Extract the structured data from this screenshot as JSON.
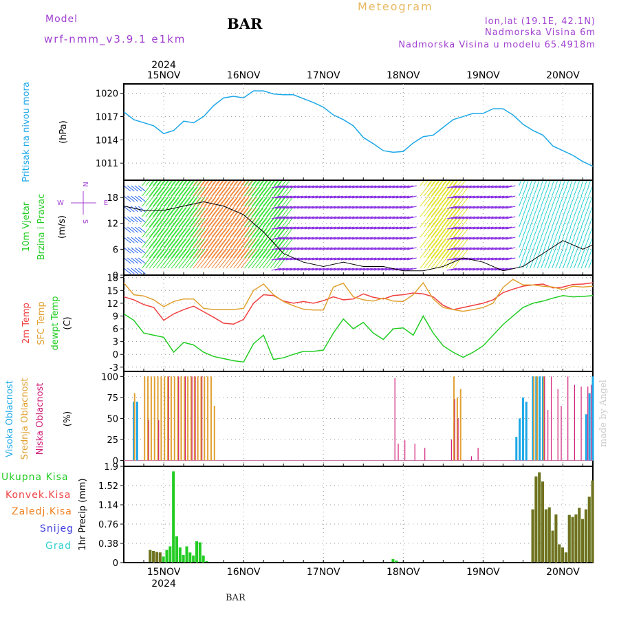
{
  "header": {
    "model_label": "Model",
    "model_run": "wrf-nmm_v3.9.1 e1km",
    "station": "BAR",
    "chart_type": "Meteogram",
    "location": "lon,lat (19.1E, 42.1N)",
    "altitude": "Nadmorska Visina 6m",
    "model_altitude": "Nadmorska Visina u modelu 65.4918m"
  },
  "footer": {
    "station": "BAR",
    "credit": "made by Angel"
  },
  "colors": {
    "pressure": "#1ca8e8",
    "t2m": "#f04040",
    "sfc": "#e0a030",
    "dewpt": "#22cc22",
    "high_cloud": "#1ca8e8",
    "mid_cloud": "#e0a030",
    "low_cloud": "#d0207a",
    "total_precip": "#22cc22",
    "conv_precip": "#f04040",
    "frozen": "#f08020",
    "snow": "#4040e0",
    "graupel": "#30d0d0",
    "wind_compass": "#a040d0"
  },
  "chart_data": [
    {
      "type": "line",
      "name": "pressure",
      "ylabel_lines": [
        "Pritisak na nivou mora",
        "(hPa)"
      ],
      "yticks": [
        "1020",
        "1017",
        "1014",
        "1011"
      ],
      "ytick_values": [
        1020,
        1017,
        1014,
        1011
      ],
      "ylim": [
        1008.8,
        1021.2
      ],
      "xlim": [
        0,
        141
      ],
      "x_top_labels": [
        "15NOV",
        "16NOV",
        "17NOV",
        "18NOV",
        "19NOV",
        "20NOV"
      ],
      "x_top_year": "2024",
      "x_day_positions": [
        12,
        36,
        60,
        84,
        108,
        132
      ],
      "grid": true,
      "x": [
        0,
        3,
        6,
        9,
        12,
        15,
        18,
        21,
        24,
        27,
        30,
        33,
        36,
        39,
        42,
        45,
        48,
        51,
        54,
        57,
        60,
        63,
        66,
        69,
        72,
        75,
        78,
        81,
        84,
        87,
        90,
        93,
        96,
        99,
        102,
        105,
        108,
        111,
        114,
        117,
        120,
        123,
        126,
        129,
        132,
        135,
        138,
        141
      ],
      "y": [
        1017.6,
        1016.6,
        1016.2,
        1015.8,
        1014.8,
        1015.2,
        1016.4,
        1016.2,
        1017.0,
        1018.4,
        1019.4,
        1019.6,
        1019.4,
        1020.3,
        1020.3,
        1019.9,
        1019.8,
        1019.8,
        1019.3,
        1018.8,
        1018.2,
        1017.2,
        1016.6,
        1015.8,
        1014.3,
        1013.5,
        1012.6,
        1012.4,
        1012.5,
        1013.6,
        1014.4,
        1014.6,
        1015.6,
        1016.6,
        1017.0,
        1017.4,
        1017.4,
        1018.0,
        1018.0,
        1017.2,
        1016.0,
        1015.2,
        1014.6,
        1013.2,
        1012.6,
        1012.0,
        1011.2,
        1010.6
      ]
    },
    {
      "type": "line",
      "name": "wind",
      "ylabel_lines": [
        "10m Vjetar",
        "Brzina i Pravac",
        "(m/s)"
      ],
      "compass": [
        "N",
        "W",
        "E",
        "S"
      ],
      "yticks": [
        "0",
        "6",
        "12",
        "18"
      ],
      "ytick_values": [
        0,
        6,
        12,
        18
      ],
      "ylim": [
        0,
        22
      ],
      "x": [
        0,
        6,
        12,
        18,
        24,
        30,
        36,
        42,
        48,
        54,
        60,
        66,
        72,
        78,
        84,
        90,
        96,
        102,
        108,
        114,
        120,
        126,
        132,
        138,
        141
      ],
      "speed": [
        16,
        15,
        15,
        16,
        17,
        16,
        14,
        10,
        5,
        3,
        2,
        3,
        2,
        2,
        1,
        1,
        2,
        4,
        3,
        1,
        2,
        5,
        8,
        6,
        7
      ],
      "barb_colors": [
        "#30e030",
        "#e0e020",
        "#f08030",
        "#f03030",
        "#e020a0",
        "#8020e0",
        "#2060f0",
        "#20d0d0",
        "#80f040"
      ],
      "band_segments": [
        {
          "x0": 0,
          "x1": 5,
          "color_index": 6
        },
        {
          "x0": 5,
          "x1": 20,
          "color_index": 0
        },
        {
          "x0": 20,
          "x1": 36,
          "color_index": 2
        },
        {
          "x0": 36,
          "x1": 47,
          "color_index": 0
        },
        {
          "x0": 47,
          "x1": 89,
          "color_index": 5
        },
        {
          "x0": 89,
          "x1": 100,
          "color_index": 1
        },
        {
          "x0": 100,
          "x1": 118,
          "color_index": 5
        },
        {
          "x0": 118,
          "x1": 141,
          "color_index": 7
        }
      ]
    },
    {
      "type": "line",
      "name": "temperature",
      "ylabel_lines": [
        "2m Temp",
        "SFC Temp",
        "dewpt Temp",
        "(C)"
      ],
      "yticks": [
        "-3",
        "0",
        "3",
        "6",
        "9",
        "12",
        "15",
        "18"
      ],
      "ytick_values": [
        -3,
        0,
        3,
        6,
        9,
        12,
        15,
        18
      ],
      "ylim": [
        -3,
        18
      ],
      "x": [
        0,
        3,
        6,
        9,
        12,
        15,
        18,
        21,
        24,
        27,
        30,
        33,
        36,
        39,
        42,
        45,
        48,
        51,
        54,
        57,
        60,
        63,
        66,
        69,
        72,
        75,
        78,
        81,
        84,
        87,
        90,
        93,
        96,
        99,
        102,
        105,
        108,
        111,
        114,
        117,
        120,
        123,
        126,
        129,
        132,
        135,
        138,
        141
      ],
      "series": [
        {
          "name": "2m Temp",
          "color": "#f04040",
          "values": [
            13.5,
            12.8,
            11.7,
            11.0,
            8.0,
            9.5,
            10.5,
            11.3,
            10.0,
            8.7,
            7.3,
            7.1,
            8.2,
            12.0,
            14.0,
            13.8,
            12.5,
            12.0,
            12.4,
            12.0,
            12.6,
            13.5,
            12.8,
            13.0,
            14.2,
            13.4,
            13.0,
            13.8,
            14.0,
            14.4,
            14.2,
            13.5,
            11.5,
            10.5,
            11.0,
            11.5,
            12.0,
            12.8,
            14.5,
            15.3,
            16.0,
            16.3,
            16.5,
            15.6,
            15.8,
            16.4,
            16.5,
            16.8
          ]
        },
        {
          "name": "SFC Temp",
          "color": "#e0a030",
          "values": [
            16.8,
            14.0,
            13.7,
            12.8,
            11.2,
            12.4,
            13.0,
            13.0,
            10.8,
            10.5,
            10.5,
            10.5,
            10.8,
            15.0,
            16.5,
            14.0,
            12.4,
            11.4,
            10.6,
            10.4,
            10.4,
            15.8,
            16.7,
            13.5,
            12.8,
            12.5,
            13.2,
            12.5,
            12.4,
            14.0,
            16.8,
            13.0,
            11.0,
            10.5,
            10.1,
            10.5,
            11.0,
            12.0,
            15.7,
            17.6,
            16.3,
            16.3,
            16.0,
            15.8,
            15.2,
            16.0,
            15.8,
            16.0
          ]
        },
        {
          "name": "dewpt Temp",
          "color": "#22cc22",
          "values": [
            9.5,
            8.0,
            5.0,
            4.5,
            4.0,
            0.5,
            2.8,
            2.2,
            0.5,
            -0.5,
            -1.0,
            -1.5,
            -1.8,
            2.5,
            4.5,
            -1.2,
            -0.8,
            0.0,
            0.7,
            0.7,
            1.0,
            5.0,
            8.3,
            6.0,
            7.5,
            5.0,
            3.5,
            6.0,
            6.2,
            4.5,
            9.0,
            5.0,
            2.0,
            0.5,
            -0.7,
            0.5,
            2.0,
            4.5,
            7.0,
            9.0,
            11.0,
            12.0,
            12.5,
            13.2,
            13.8,
            13.5,
            13.6,
            13.8
          ]
        }
      ]
    },
    {
      "type": "bar",
      "name": "clouds",
      "ylabel_lines": [
        "Visoka Oblacnost",
        "Srednja Oblacnost",
        "Niska Oblacnost",
        "(%)"
      ],
      "yticks": [
        "0",
        "25",
        "50",
        "75",
        "100"
      ],
      "ytick_values": [
        0,
        25,
        50,
        75,
        100
      ],
      "ylim": [
        0,
        100
      ],
      "series": [
        {
          "name": "Visoka Oblacnost",
          "color": "#1ca8e8",
          "x": [
            3,
            4,
            118,
            119,
            120,
            121,
            123,
            124,
            125,
            126,
            139,
            140,
            141
          ],
          "values": [
            70,
            70,
            28,
            50,
            75,
            70,
            100,
            100,
            100,
            100,
            55,
            80,
            100
          ]
        },
        {
          "name": "Srednja Oblacnost",
          "color": "#e0a030",
          "x": [
            3,
            6,
            7,
            8,
            9,
            10,
            11,
            12,
            13,
            14,
            15,
            16,
            17,
            18,
            19,
            20,
            21,
            22,
            23,
            24,
            25,
            26,
            27,
            99,
            100,
            101,
            123,
            124,
            126
          ],
          "values": [
            80,
            100,
            100,
            100,
            100,
            100,
            100,
            100,
            100,
            100,
            100,
            100,
            100,
            100,
            100,
            100,
            100,
            100,
            100,
            100,
            100,
            100,
            65,
            100,
            75,
            85,
            100,
            100,
            100
          ]
        },
        {
          "name": "Niska Oblacnost",
          "color": "#d0207a",
          "x": [
            7,
            10,
            13,
            16,
            18,
            20,
            21,
            23,
            81,
            82,
            84,
            87,
            90,
            98,
            99,
            100,
            104,
            106,
            126,
            127,
            128,
            130,
            131,
            133,
            135,
            137,
            139,
            140
          ],
          "values": [
            48,
            48,
            100,
            100,
            100,
            100,
            100,
            100,
            98,
            20,
            24,
            20,
            15,
            25,
            73,
            50,
            5,
            15,
            100,
            60,
            100,
            85,
            65,
            100,
            90,
            88,
            88,
            90
          ]
        }
      ]
    },
    {
      "type": "bar",
      "name": "precipitation",
      "ylabel_lines": [
        "1hr Precip (mm)"
      ],
      "legend": [
        "Ukupna Kisa",
        "Konvek.Kisa",
        "Zaledj.Kisa",
        "Snijeg",
        "Grad"
      ],
      "yticks": [
        "0",
        "0.38",
        "0.76",
        "1.14",
        "1.52",
        "1.9"
      ],
      "ytick_values": [
        0,
        0.38,
        0.76,
        1.14,
        1.52,
        1.9
      ],
      "ylim": [
        0,
        1.9
      ],
      "x_bottom_labels": [
        "15NOV",
        "16NOV",
        "17NOV",
        "18NOV",
        "19NOV",
        "20NOV"
      ],
      "x_bottom_year": "2024",
      "series": [
        {
          "name": "Ukupna Kisa",
          "color": "#22cc22",
          "x": [
            8,
            9,
            10,
            11,
            12,
            13,
            14,
            15,
            16,
            17,
            18,
            19,
            20,
            21,
            22,
            23,
            24,
            25,
            81,
            82,
            123,
            124,
            125,
            126,
            127,
            128,
            129,
            130,
            131,
            132,
            133,
            134,
            135,
            136,
            137,
            138,
            139,
            140,
            141
          ],
          "values": [
            0.25,
            0.23,
            0.21,
            0.2,
            0.12,
            0.25,
            0.32,
            1.8,
            0.52,
            0.3,
            0.15,
            0.32,
            0.2,
            0.14,
            0.42,
            0.4,
            0.14,
            0.03,
            0.07,
            0.04,
            1.05,
            1.7,
            1.78,
            1.6,
            1.05,
            1.09,
            0.63,
            0.95,
            0.36,
            0.3,
            0.2,
            0.94,
            0.9,
            0.95,
            1.08,
            0.86,
            1.05,
            1.3,
            1.62
          ]
        },
        {
          "name": "Konvek.Kisa",
          "color": "#f04040",
          "x": [
            8,
            9,
            10,
            11,
            123,
            124,
            125,
            126,
            127,
            128,
            129,
            130,
            131,
            132,
            133,
            134,
            135,
            136,
            137,
            138,
            139,
            140,
            141
          ],
          "values": [
            0.25,
            0.23,
            0.21,
            0.2,
            1.05,
            1.7,
            1.78,
            1.6,
            1.05,
            1.09,
            0.63,
            0.95,
            0.36,
            0.3,
            0.2,
            0.94,
            0.9,
            0.95,
            1.08,
            0.86,
            1.05,
            1.3,
            1.62
          ]
        }
      ]
    }
  ]
}
